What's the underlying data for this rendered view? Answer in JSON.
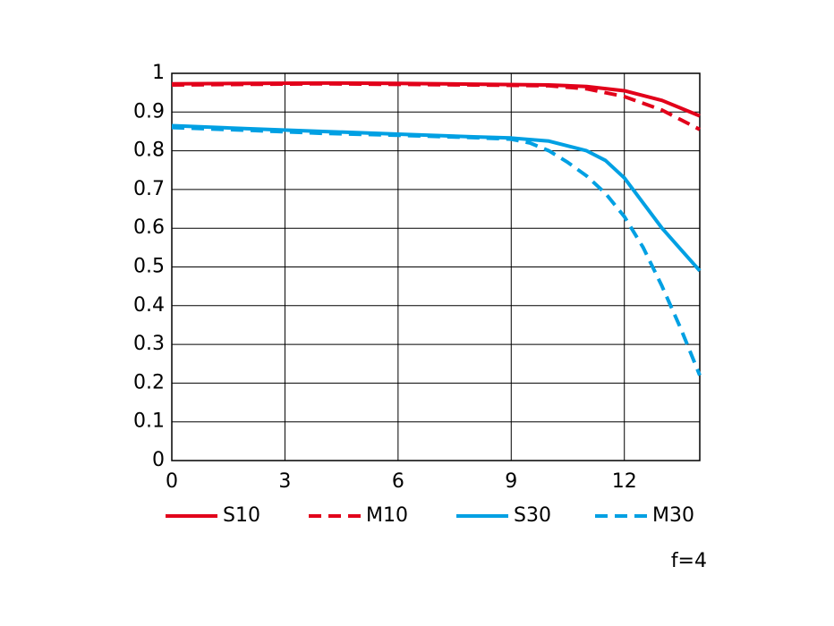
{
  "chart_data": {
    "type": "line",
    "xlim": [
      0,
      14
    ],
    "xticks": [
      0,
      3,
      6,
      9,
      12
    ],
    "ylim": [
      0,
      1
    ],
    "yticks": [
      0,
      0.1,
      0.2,
      0.3,
      0.4,
      0.5,
      0.6,
      0.7,
      0.8,
      0.9,
      1
    ],
    "grid": true,
    "legend": "bottom",
    "annotation": "f=4",
    "series": [
      {
        "name": "S10",
        "color": "#e2001a",
        "style": "solid",
        "x": [
          0,
          2,
          4,
          6,
          8,
          10,
          11,
          12,
          13,
          14
        ],
        "values": [
          0.973,
          0.974,
          0.975,
          0.974,
          0.972,
          0.97,
          0.966,
          0.955,
          0.93,
          0.89
        ]
      },
      {
        "name": "M10",
        "color": "#e2001a",
        "style": "dashed",
        "x": [
          0,
          4,
          8,
          10,
          11,
          12,
          13,
          14
        ],
        "values": [
          0.97,
          0.973,
          0.97,
          0.968,
          0.96,
          0.94,
          0.905,
          0.855
        ]
      },
      {
        "name": "S30",
        "color": "#00a0e3",
        "style": "solid",
        "x": [
          0,
          2,
          4,
          6,
          8,
          9,
          10,
          11,
          11.5,
          12,
          12.5,
          13,
          13.5,
          14
        ],
        "values": [
          0.865,
          0.857,
          0.85,
          0.843,
          0.836,
          0.833,
          0.825,
          0.8,
          0.775,
          0.73,
          0.665,
          0.6,
          0.545,
          0.49
        ]
      },
      {
        "name": "M30",
        "color": "#00a0e3",
        "style": "dashed",
        "x": [
          0,
          2,
          4,
          6,
          8,
          9,
          9.5,
          10,
          10.5,
          11,
          11.5,
          12,
          12.5,
          13,
          13.5,
          14
        ],
        "values": [
          0.86,
          0.853,
          0.845,
          0.84,
          0.834,
          0.83,
          0.82,
          0.8,
          0.77,
          0.735,
          0.69,
          0.63,
          0.55,
          0.45,
          0.34,
          0.22
        ]
      }
    ]
  }
}
